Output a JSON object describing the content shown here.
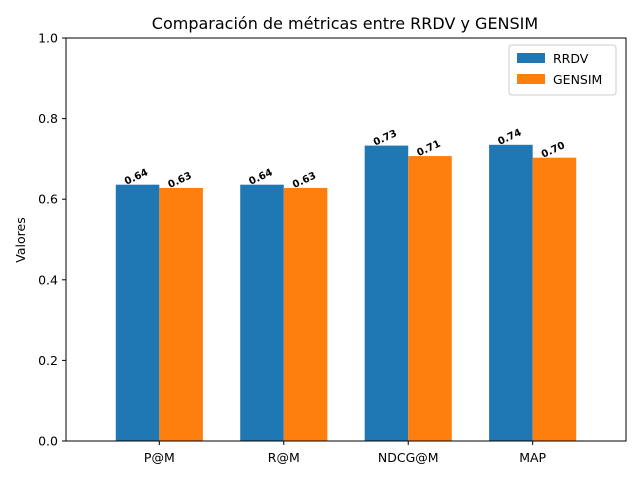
{
  "chart_data": {
    "type": "bar",
    "title": "Comparación de métricas entre RRDV y GENSIM",
    "xlabel": "",
    "ylabel": "Valores",
    "categories": [
      "P@M",
      "R@M",
      "NDCG@M",
      "MAP"
    ],
    "series": [
      {
        "name": "RRDV",
        "color": "#1f77b4",
        "values": [
          0.636,
          0.636,
          0.733,
          0.735
        ],
        "labels": [
          "0.64",
          "0.64",
          "0.73",
          "0.74"
        ]
      },
      {
        "name": "GENSIM",
        "color": "#ff7f0e",
        "values": [
          0.628,
          0.628,
          0.707,
          0.703
        ],
        "labels": [
          "0.63",
          "0.63",
          "0.71",
          "0.70"
        ]
      }
    ],
    "ylim": [
      0,
      1.0
    ],
    "yticks": [
      "0.0",
      "0.2",
      "0.4",
      "0.6",
      "0.8",
      "1.0"
    ],
    "grid": false,
    "legend_position": "top-right"
  }
}
